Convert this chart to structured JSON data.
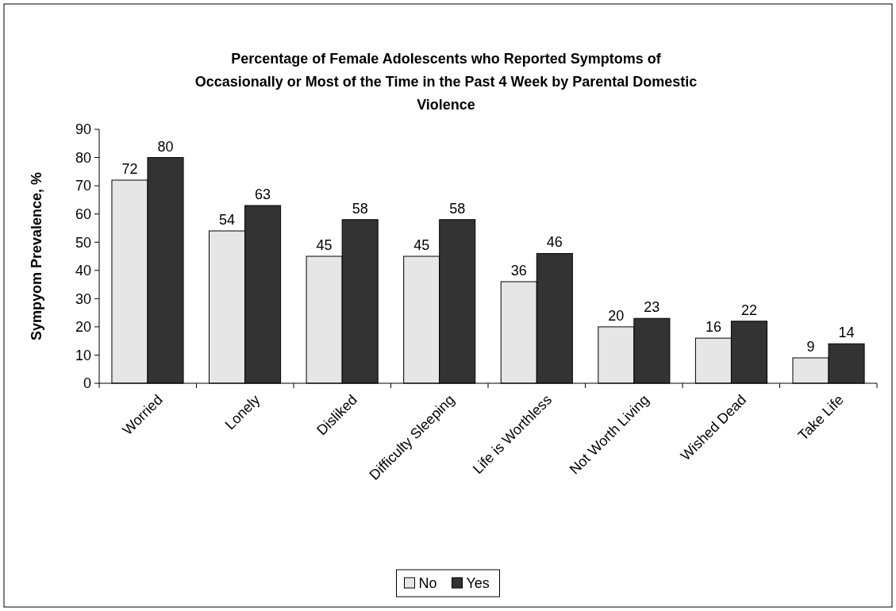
{
  "chart_data": {
    "type": "bar",
    "title": "Percentage of Female Adolescents who Reported Symptoms of Occasionally or Most of the Time in the Past 4 Week by Parental Domestic Violence",
    "ylabel": "Sympyom Prevalence, %",
    "categories": [
      "Worried",
      "Lonely",
      "Disliked",
      "Difficulty Sleeping",
      "Life is Worthless",
      "Not Worth Living",
      "Wished Dead",
      "Take Life"
    ],
    "series": [
      {
        "name": "No",
        "color": "#e6e6e6",
        "values": [
          72,
          54,
          45,
          45,
          36,
          20,
          16,
          9
        ]
      },
      {
        "name": "Yes",
        "color": "#333333",
        "values": [
          80,
          63,
          58,
          58,
          46,
          23,
          22,
          14
        ]
      }
    ],
    "ylim": [
      0,
      90
    ],
    "yticks": [
      0,
      10,
      20,
      30,
      40,
      50,
      60,
      70,
      80,
      90
    ],
    "data_labels": true,
    "legend": "bottom",
    "grid": false
  }
}
